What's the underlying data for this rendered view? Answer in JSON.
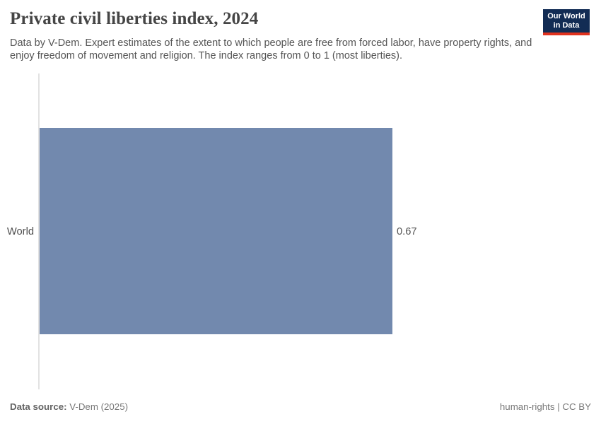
{
  "header": {
    "title": "Private civil liberties index, 2024",
    "subtitle": "Data by V-Dem. Expert estimates of the extent to which people are free from forced labor, have property rights, and enjoy freedom of movement and religion. The index ranges from 0 to 1 (most liberties)."
  },
  "logo": {
    "line1": "Our World",
    "line2": "in Data",
    "bg_color": "#122c54",
    "accent_color": "#e0321e"
  },
  "chart_data": {
    "type": "bar",
    "orientation": "horizontal",
    "title": "Private civil liberties index, 2024",
    "categories": [
      "World"
    ],
    "values": [
      0.67
    ],
    "value_labels": [
      "0.67"
    ],
    "xlim": [
      0,
      1
    ],
    "bar_color": "#7289ae",
    "grid": false,
    "legend": "none"
  },
  "footer": {
    "source_label": "Data source:",
    "source_value": " V-Dem (2025)",
    "note": "human-rights | CC BY"
  }
}
